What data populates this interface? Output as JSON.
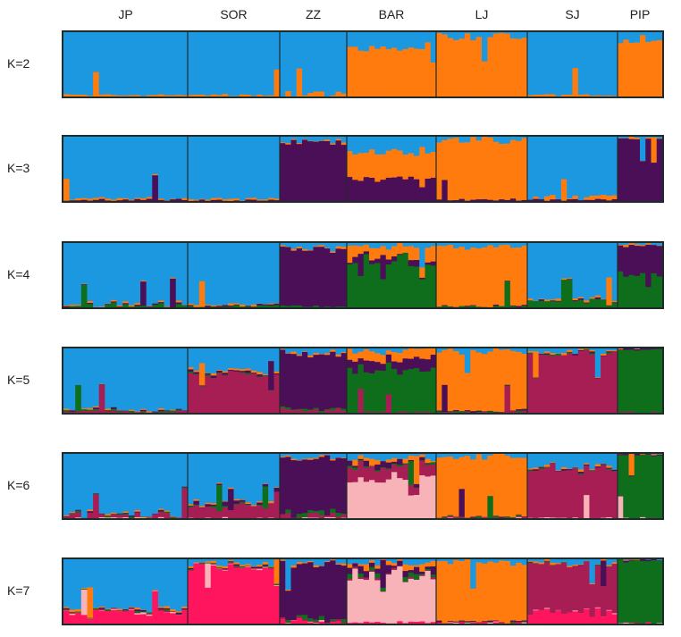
{
  "chart_data": {
    "type": "bar",
    "subtype": "stacked-admixture",
    "title": "",
    "xlabel": "",
    "ylabel": "",
    "ylim": [
      0,
      1
    ],
    "grid": false,
    "populations": [
      {
        "name": "JP",
        "n": 21
      },
      {
        "name": "SOR",
        "n": 16
      },
      {
        "name": "ZZ",
        "n": 12
      },
      {
        "name": "BAR",
        "n": 16
      },
      {
        "name": "LJ",
        "n": 16
      },
      {
        "name": "SJ",
        "n": 16
      },
      {
        "name": "PIP",
        "n": 8
      }
    ],
    "cluster_colors": {
      "c1": "#1c98e0",
      "c2": "#ff7b0e",
      "c3": "#4a0f57",
      "c4": "#0f6e1c",
      "c5": "#a71e55",
      "c6": "#f7b3b7",
      "c7": "#ff145e"
    },
    "panels": [
      {
        "label": "K=2",
        "clusters": [
          "c1",
          "c2"
        ],
        "populations": [
          [
            0.98,
            0.02
          ],
          [
            0.98,
            0.02
          ],
          [
            0.97,
            0.03
          ],
          [
            0.25,
            0.75
          ],
          [
            0.07,
            0.93
          ],
          [
            0.98,
            0.02
          ],
          [
            0.12,
            0.88
          ]
        ]
      },
      {
        "label": "K=3",
        "clusters": [
          "c1",
          "c2",
          "c3"
        ],
        "populations": [
          [
            0.96,
            0.02,
            0.02
          ],
          [
            0.97,
            0.02,
            0.01
          ],
          [
            0.08,
            0.02,
            0.9
          ],
          [
            0.25,
            0.4,
            0.35
          ],
          [
            0.06,
            0.92,
            0.02
          ],
          [
            0.95,
            0.03,
            0.02
          ],
          [
            0.02,
            0.02,
            0.96
          ]
        ]
      },
      {
        "label": "K=4",
        "clusters": [
          "c1",
          "c2",
          "c3",
          "c4"
        ],
        "populations": [
          [
            0.94,
            0.02,
            0.01,
            0.03
          ],
          [
            0.95,
            0.02,
            0.01,
            0.02
          ],
          [
            0.08,
            0.02,
            0.88,
            0.02
          ],
          [
            0.05,
            0.2,
            0.05,
            0.7
          ],
          [
            0.06,
            0.92,
            0.01,
            0.01
          ],
          [
            0.88,
            0.02,
            0.01,
            0.09
          ],
          [
            0.02,
            0.02,
            0.46,
            0.5
          ]
        ]
      },
      {
        "label": "K=5",
        "clusters": [
          "c1",
          "c2",
          "c3",
          "c4",
          "c5"
        ],
        "populations": [
          [
            0.95,
            0.01,
            0.01,
            0.01,
            0.02
          ],
          [
            0.35,
            0.02,
            0.02,
            0.01,
            0.6
          ],
          [
            0.06,
            0.02,
            0.86,
            0.02,
            0.04
          ],
          [
            0.05,
            0.14,
            0.16,
            0.65,
            0.0
          ],
          [
            0.05,
            0.92,
            0.01,
            0.01,
            0.01
          ],
          [
            0.05,
            0.02,
            0.01,
            0.01,
            0.91
          ],
          [
            0.0,
            0.0,
            0.01,
            0.99,
            0.0
          ]
        ]
      },
      {
        "label": "K=6",
        "clusters": [
          "c1",
          "c2",
          "c3",
          "c4",
          "c5",
          "c6"
        ],
        "populations": [
          [
            0.93,
            0.01,
            0.01,
            0.01,
            0.04,
            0.0
          ],
          [
            0.75,
            0.02,
            0.03,
            0.01,
            0.19,
            0.0
          ],
          [
            0.06,
            0.02,
            0.86,
            0.03,
            0.03,
            0.0
          ],
          [
            0.07,
            0.06,
            0.05,
            0.02,
            0.2,
            0.6
          ],
          [
            0.05,
            0.93,
            0.0,
            0.01,
            0.01,
            0.0
          ],
          [
            0.2,
            0.02,
            0.01,
            0.01,
            0.76,
            0.0
          ],
          [
            0.0,
            0.0,
            0.01,
            0.99,
            0.0,
            0.0
          ]
        ]
      },
      {
        "label": "K=7",
        "clusters": [
          "c1",
          "c2",
          "c3",
          "c4",
          "c5",
          "c6",
          "c7"
        ],
        "populations": [
          [
            0.77,
            0.02,
            0.01,
            0.01,
            0.01,
            0.01,
            0.17
          ],
          [
            0.06,
            0.02,
            0.01,
            0.01,
            0.01,
            0.01,
            0.88
          ],
          [
            0.06,
            0.02,
            0.84,
            0.03,
            0.01,
            0.01,
            0.03
          ],
          [
            0.06,
            0.06,
            0.08,
            0.04,
            0.02,
            0.72,
            0.02
          ],
          [
            0.05,
            0.93,
            0.01,
            0.0,
            0.0,
            0.0,
            0.01
          ],
          [
            0.05,
            0.02,
            0.0,
            0.0,
            0.73,
            0.0,
            0.2
          ],
          [
            0.0,
            0.0,
            0.01,
            0.99,
            0.0,
            0.0,
            0.0
          ]
        ]
      }
    ]
  }
}
